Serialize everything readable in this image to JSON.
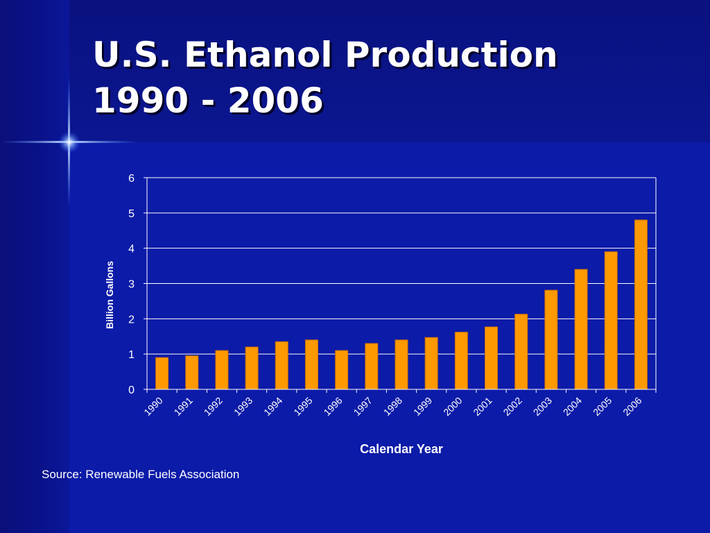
{
  "slide": {
    "title_line1": "U.S. Ethanol Production",
    "title_line2": "1990 - 2006",
    "source": "Source: Renewable Fuels Association"
  },
  "colors": {
    "background": "#0c1ba8",
    "bar": "#ff9900",
    "text": "#ffffff"
  },
  "chart_data": {
    "type": "bar",
    "categories": [
      "1990",
      "1991",
      "1992",
      "1993",
      "1994",
      "1995",
      "1996",
      "1997",
      "1998",
      "1999",
      "2000",
      "2001",
      "2002",
      "2003",
      "2004",
      "2005",
      "2006"
    ],
    "values": [
      0.9,
      0.95,
      1.1,
      1.2,
      1.35,
      1.4,
      1.1,
      1.3,
      1.4,
      1.47,
      1.62,
      1.77,
      2.13,
      2.81,
      3.4,
      3.9,
      4.8
    ],
    "xlabel": "Calendar Year",
    "ylabel": "Billion Gallons",
    "ylim": [
      0,
      6
    ],
    "yticks": [
      "0",
      "1",
      "2",
      "3",
      "4",
      "5",
      "6"
    ],
    "grid": true,
    "legend": "none"
  }
}
